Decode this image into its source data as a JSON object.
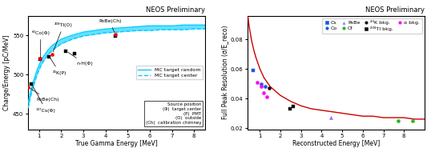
{
  "chart_data": [
    {
      "type": "line",
      "title": "NEOS Preliminary",
      "x_label": "True Gamma Energy [MeV]",
      "y_label": "Charge/Energy [pC/MeV]",
      "xlim": [
        0.5,
        8.5
      ],
      "ylim": [
        430,
        575
      ],
      "xticks": [
        1,
        2,
        3,
        4,
        5,
        6,
        7,
        8
      ],
      "yticks": [
        450,
        500,
        550
      ],
      "legend": "center right",
      "x": [
        0.5,
        0.6,
        0.7,
        0.8,
        0.9,
        1.0,
        1.1,
        1.2,
        1.4,
        1.6,
        1.8,
        2.0,
        2.5,
        3.0,
        3.5,
        4.0,
        4.5,
        5.0,
        5.5,
        6.0,
        6.5,
        7.0,
        7.5,
        8.0,
        8.5
      ],
      "series": [
        {
          "name": "MC target random",
          "color": "#00ccff",
          "line_style": "solid",
          "values": [
            463,
            476,
            487,
            496,
            505,
            512,
            518,
            523,
            531,
            537,
            541,
            545,
            550,
            554,
            556,
            558,
            559,
            560,
            561,
            562,
            562,
            562,
            563,
            563,
            563
          ]
        },
        {
          "name": "MC target center",
          "color": "#00ccff",
          "line_style": "dashed",
          "values": [
            457,
            470,
            481,
            490,
            499,
            506,
            512,
            517,
            525,
            531,
            535,
            539,
            545,
            549,
            551,
            553,
            554,
            555,
            556,
            556,
            557,
            557,
            557,
            558,
            558
          ]
        },
        {
          "type": "scatter",
          "color": "black",
          "marker": "square",
          "x": [
            0.662,
            1.062,
            1.46,
            2.22,
            2.615,
            4.44
          ],
          "values": [
            488,
            519,
            523,
            530,
            527,
            549
          ]
        },
        {
          "type": "scatter",
          "color": "red",
          "marker": "circle",
          "x": [
            0.511,
            1.062,
            1.592,
            4.44
          ],
          "values": [
            484,
            521,
            526,
            551
          ]
        }
      ],
      "annotations": [
        {
          "text": "⁶⁰Co(Φ)",
          "x": 1.062,
          "y": 519
        },
        {
          "text": "²⁰⁸Tl(O)",
          "x": 1.592,
          "y": 526
        },
        {
          "text": "⁴⁰K(P)",
          "x": 1.46,
          "y": 523
        },
        {
          "text": "n-H(Φ)",
          "x": 2.22,
          "y": 530
        },
        {
          "text": "PoBe(Ch)",
          "x": 4.44,
          "y": 551
        },
        {
          "text": "PoBe(Ch)",
          "x": 0.511,
          "y": 484
        },
        {
          "text": "¹³⁷Cs(Φ)",
          "x": 0.662,
          "y": 488
        }
      ],
      "note": "Source position\n(Φ)  target center\n(P)  PMT\n(O)  outside\n(Ch)  calibration chimney"
    },
    {
      "type": "scatter",
      "title": "NEOS Preliminary",
      "x_label": "Reconstructed Energy [MeV]",
      "y_label": "Full Peak Resolution (σ/E_reco)",
      "xlim": [
        0.4,
        9.0
      ],
      "ylim": [
        0.019,
        0.096
      ],
      "xticks": [
        1,
        2,
        3,
        4,
        5,
        6,
        7,
        8
      ],
      "yticks": [
        0.02,
        0.04,
        0.06,
        0.08
      ],
      "legend": "upper right",
      "series": [
        {
          "type": "line",
          "color": "#cc0000",
          "line_style": "solid",
          "x": [
            0.42,
            0.5,
            0.6,
            0.7,
            0.8,
            0.9,
            1.0,
            1.2,
            1.5,
            2.0,
            2.5,
            3.0,
            3.5,
            4.0,
            4.5,
            5.0,
            5.5,
            6.0,
            6.5,
            7.0,
            7.5,
            8.0,
            8.5,
            9.0
          ],
          "values": [
            0.095,
            0.087,
            0.079,
            0.073,
            0.068,
            0.064,
            0.06,
            0.054,
            0.048,
            0.042,
            0.038,
            0.035,
            0.033,
            0.032,
            0.031,
            0.03,
            0.029,
            0.028,
            0.028,
            0.027,
            0.027,
            0.027,
            0.026,
            0.026
          ]
        },
        {
          "name": "Cs",
          "type": "scatter",
          "marker": "square",
          "color": "#1a56e8",
          "x": [
            0.662
          ],
          "values": [
            0.059
          ]
        },
        {
          "name": "Co",
          "type": "scatter",
          "marker": "circle",
          "color": "#1a56e8",
          "x": [
            1.062,
            1.25
          ],
          "values": [
            0.05,
            0.048
          ]
        },
        {
          "name": "PoBe",
          "type": "scatter",
          "marker": "triangle_up",
          "color": "#9966ff",
          "x": [
            4.44
          ],
          "values": [
            0.027
          ]
        },
        {
          "name": "Cf",
          "type": "scatter",
          "marker": "circle",
          "color": "#22bb22",
          "x": [
            7.7,
            8.4
          ],
          "values": [
            0.025,
            0.025
          ]
        },
        {
          "name": "⁴⁰K bkg.",
          "type": "scatter",
          "marker": "circle",
          "color": "#111111",
          "x": [
            1.46
          ],
          "values": [
            0.047
          ]
        },
        {
          "name": "²⁰⁸Tl bkg.",
          "type": "scatter",
          "marker": "square",
          "color": "#111111",
          "x": [
            2.61,
            2.45
          ],
          "values": [
            0.0345,
            0.033
          ]
        },
        {
          "name": "α bkg.",
          "type": "scatter",
          "marker": "circle",
          "color": "#ff00ff",
          "x": [
            0.88,
            1.05,
            1.18,
            1.32
          ],
          "values": [
            0.051,
            0.048,
            0.044,
            0.041
          ]
        }
      ]
    }
  ]
}
